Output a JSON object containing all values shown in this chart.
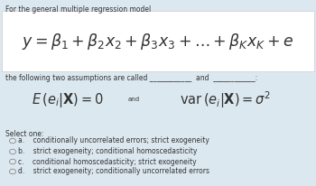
{
  "background_color": "#dce8f0",
  "box_facecolor": "#ffffff",
  "box_edgecolor": "#cccccc",
  "title_text": "For the general multiple regression model",
  "subtitle": "the following two assumptions are called ____________  and  ____________:",
  "and_text": "and",
  "select_label": "Select one:",
  "option_texts": [
    "a.    conditionally uncorrelated errors; strict exogeneity",
    "b.    strict exogeneity; conditional homoscedasticity",
    "c.    conditional homoscedasticity; strict exogeneity",
    "d.    strict exogeneity; conditionally uncorrelated errors"
  ],
  "option_labels": [
    "a",
    "b",
    "c",
    "d"
  ],
  "selected_option": "",
  "text_color": "#333333",
  "gray_color": "#888888",
  "title_fontsize": 5.5,
  "subtitle_fontsize": 5.5,
  "main_eq_fontsize": 12.5,
  "mid_eq_fontsize": 10.5,
  "and_fontsize": 5.0,
  "select_fontsize": 5.5,
  "option_fontsize": 5.5
}
